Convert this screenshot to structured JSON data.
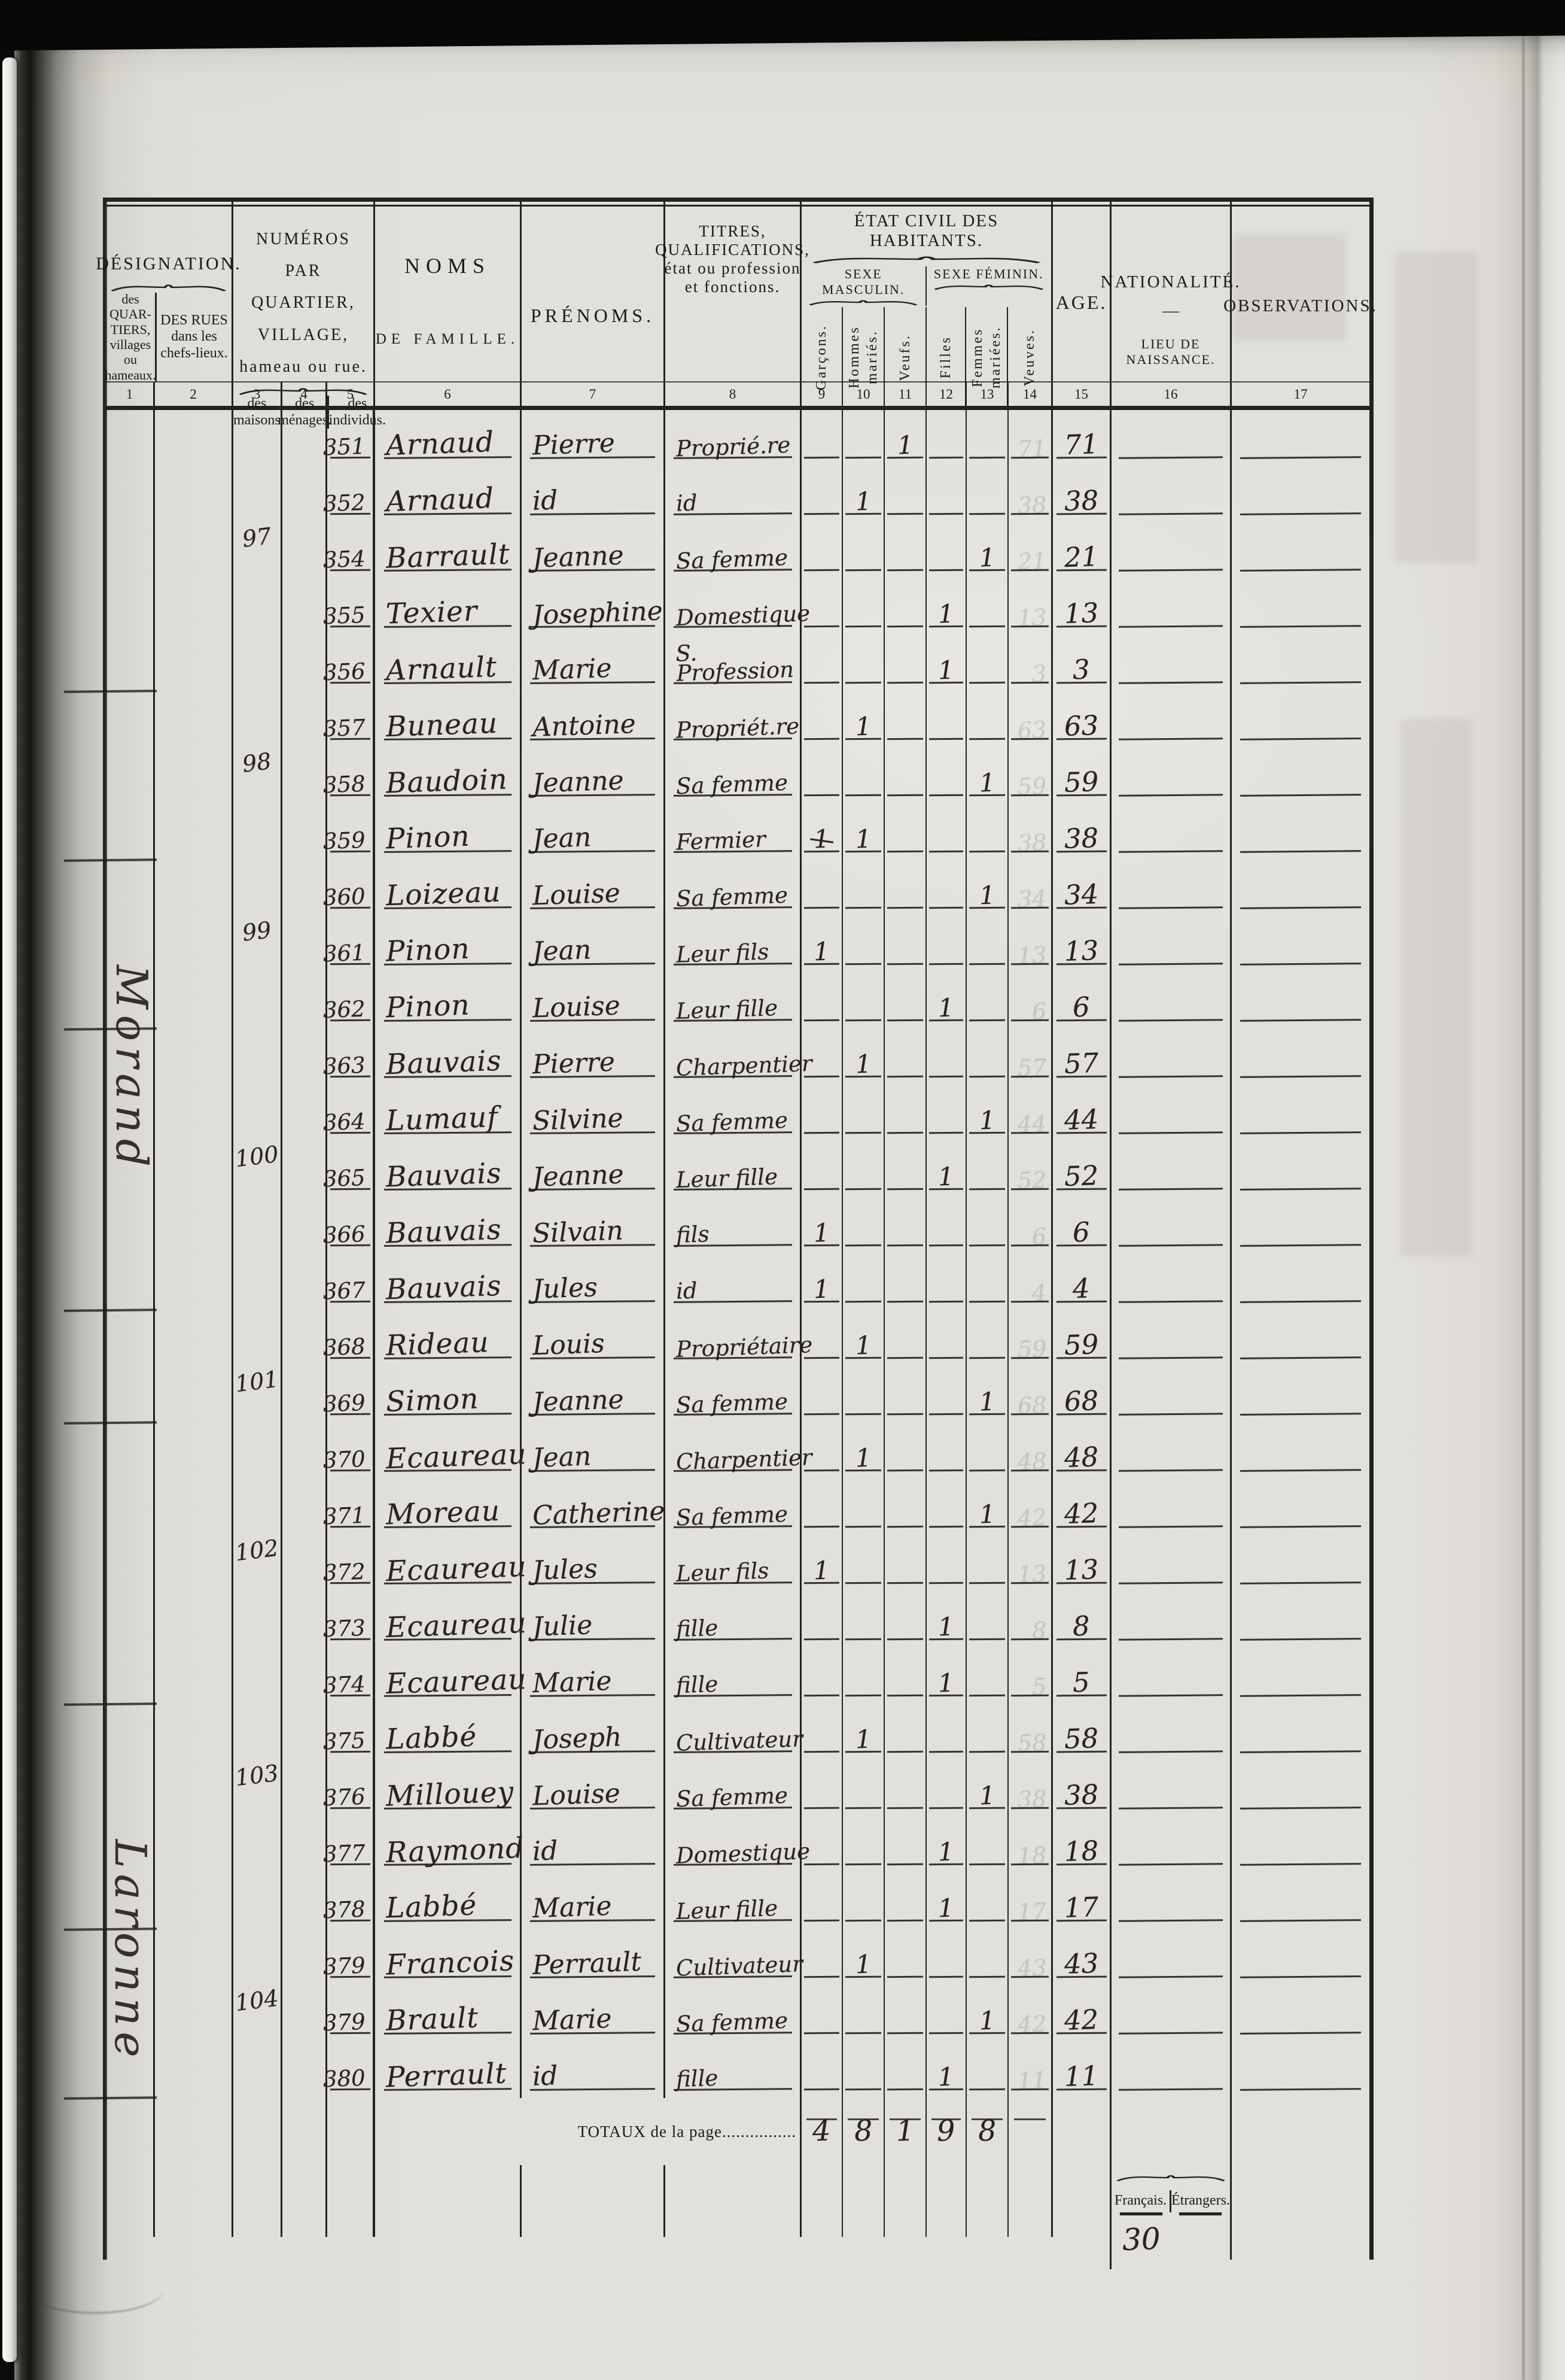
{
  "header": {
    "designation": {
      "title": "DÉSIGNATION.",
      "sub_quartiers": "des\nQUAR-\nTIERS,\nvillages\nou\nhameaux.",
      "sub_rues": "DES RUES\ndans les\nchefs-lieux."
    },
    "numeros": {
      "title": "NUMÉROS\nPAR QUARTIER, VILLAGE,\nhameau ou rue.",
      "sub_maisons": "des\nmaisons",
      "sub_menages": "des\nménages.",
      "sub_individus": "des\nindividus."
    },
    "noms": {
      "line1": "NOMS",
      "line2": "DE FAMILLE."
    },
    "prenoms": "PRÉNOMS.",
    "titres": "TITRES,\nQUALIFICATIONS,\nétat ou profession\net fonctions.",
    "etat_civil": {
      "title": "ÉTAT CIVIL DES HABITANTS.",
      "masculin": "SEXE MASCULIN.",
      "feminin": "SEXE FÉMININ.",
      "cols": [
        "Garçons.",
        "Hommes mariés.",
        "Veufs.",
        "Filles",
        "Femmes mariées.",
        "Veuves."
      ]
    },
    "age": "AGE.",
    "nationalite": {
      "title": "NATIONALITÉ.",
      "dash": "—",
      "sub": "LIEU DE NAISSANCE."
    },
    "observations": "OBSERVATIONS."
  },
  "column_numbers": [
    "1",
    "2",
    "3",
    "4",
    "5",
    "6",
    "7",
    "8",
    "9",
    "10",
    "11",
    "12",
    "13",
    "14",
    "15",
    "16",
    "17"
  ],
  "margin_notes": [
    "Morand",
    "Laronne"
  ],
  "rows": [
    {
      "no": "351",
      "nom": "Arnaud",
      "prenom": "Pierre",
      "titre": "Proprié.re",
      "v": "1",
      "age": "71"
    },
    {
      "no": "352",
      "nom": "Arnaud",
      "prenom": "id",
      "titre": "id",
      "hm": "1",
      "age": "38"
    },
    {
      "no": "354",
      "maison": "97",
      "nom": "Barrault",
      "prenom": "Jeanne",
      "titre": "Sa femme",
      "fm": "1",
      "age": "21"
    },
    {
      "no": "355",
      "nom": "Texier",
      "prenom": "Josephine",
      "titre": "Domestique",
      "f": "1",
      "age": "13"
    },
    {
      "no": "356",
      "nom": "Arnault",
      "prenom": "Marie",
      "titre": "S. Profession",
      "f": "1",
      "age": "3"
    },
    {
      "no": "357",
      "nom": "Buneau",
      "prenom": "Antoine",
      "titre": "Propriét.re",
      "hm": "1",
      "age": "63",
      "sep": true
    },
    {
      "no": "358",
      "maison": "98",
      "nom": "Baudoin",
      "prenom": "Jeanne",
      "titre": "Sa femme",
      "fm": "1",
      "age": "59"
    },
    {
      "no": "359",
      "nom": "Pinon",
      "prenom": "Jean",
      "titre": "Fermier",
      "g": "1",
      "g_struck": true,
      "hm": "1",
      "age": "38"
    },
    {
      "no": "360",
      "nom": "Loizeau",
      "prenom": "Louise",
      "titre": "Sa femme",
      "fm": "1",
      "age": "34",
      "sep": true
    },
    {
      "no": "361",
      "maison": "99",
      "nom": "Pinon",
      "prenom": "Jean",
      "titre": "Leur fils",
      "g": "1",
      "age": "13"
    },
    {
      "no": "362",
      "nom": "Pinon",
      "prenom": "Louise",
      "titre": "Leur fille",
      "f": "1",
      "age": "6"
    },
    {
      "no": "363",
      "nom": "Bauvais",
      "prenom": "Pierre",
      "titre": "Charpentier",
      "hm": "1",
      "age": "57",
      "sep": true
    },
    {
      "no": "364",
      "nom": "Lumauf",
      "prenom": "Silvine",
      "titre": "Sa femme",
      "fm": "1",
      "age": "44"
    },
    {
      "no": "365",
      "maison": "100",
      "nom": "Bauvais",
      "prenom": "Jeanne",
      "titre": "Leur fille",
      "f": "1",
      "age": "52"
    },
    {
      "no": "366",
      "nom": "Bauvais",
      "prenom": "Silvain",
      "titre": "fils",
      "g": "1",
      "age": "6"
    },
    {
      "no": "367",
      "nom": "Bauvais",
      "prenom": "Jules",
      "titre": "id",
      "g": "1",
      "age": "4"
    },
    {
      "no": "368",
      "nom": "Rideau",
      "prenom": "Louis",
      "titre": "Propriétaire",
      "hm": "1",
      "age": "59",
      "sep": true
    },
    {
      "no": "369",
      "maison": "101",
      "nom": "Simon",
      "prenom": "Jeanne",
      "titre": "Sa femme",
      "fm": "1",
      "age": "68"
    },
    {
      "no": "370",
      "nom": "Ecaureau",
      "prenom": "Jean",
      "titre": "Charpentier",
      "hm": "1",
      "age": "48",
      "sep": true
    },
    {
      "no": "371",
      "nom": "Moreau",
      "prenom": "Catherine",
      "titre": "Sa femme",
      "fm": "1",
      "age": "42"
    },
    {
      "no": "372",
      "maison": "102",
      "nom": "Ecaureau",
      "prenom": "Jules",
      "titre": "Leur fils",
      "g": "1",
      "age": "13"
    },
    {
      "no": "373",
      "nom": "Ecaureau",
      "prenom": "Julie",
      "titre": "fille",
      "f": "1",
      "age": "8"
    },
    {
      "no": "374",
      "nom": "Ecaureau",
      "prenom": "Marie",
      "titre": "fille",
      "f": "1",
      "age": "5"
    },
    {
      "no": "375",
      "nom": "Labbé",
      "prenom": "Joseph",
      "titre": "Cultivateur",
      "hm": "1",
      "age": "58",
      "sep": true
    },
    {
      "no": "376",
      "maison": "103",
      "nom": "Millouey",
      "prenom": "Louise",
      "titre": "Sa femme",
      "fm": "1",
      "age": "38"
    },
    {
      "no": "377",
      "nom": "Raymond",
      "prenom": "id",
      "titre": "Domestique",
      "f": "1",
      "age": "18"
    },
    {
      "no": "378",
      "nom": "Labbé",
      "prenom": "Marie",
      "titre": "Leur fille",
      "f": "1",
      "age": "17"
    },
    {
      "no": "379",
      "nom": "Francois",
      "prenom": "Perrault",
      "titre": "Cultivateur",
      "hm": "1",
      "age": "43",
      "sep": true
    },
    {
      "no": "379",
      "maison": "104",
      "nom": "Brault",
      "prenom": "Marie",
      "titre": "Sa femme",
      "fm": "1",
      "age": "42"
    },
    {
      "no": "380",
      "nom": "Perrault",
      "prenom": "id",
      "titre": "fille",
      "f": "1",
      "age": "11"
    }
  ],
  "totals": {
    "label": "TOTAUX de la page................",
    "garcons": "4",
    "hommes_maries": "8",
    "veufs": "1",
    "filles": "9",
    "femmes_mariees": "8",
    "veuves": ""
  },
  "footer": {
    "francais": "Français.",
    "etrangers": "Étrangers.",
    "francais_total": "30"
  }
}
